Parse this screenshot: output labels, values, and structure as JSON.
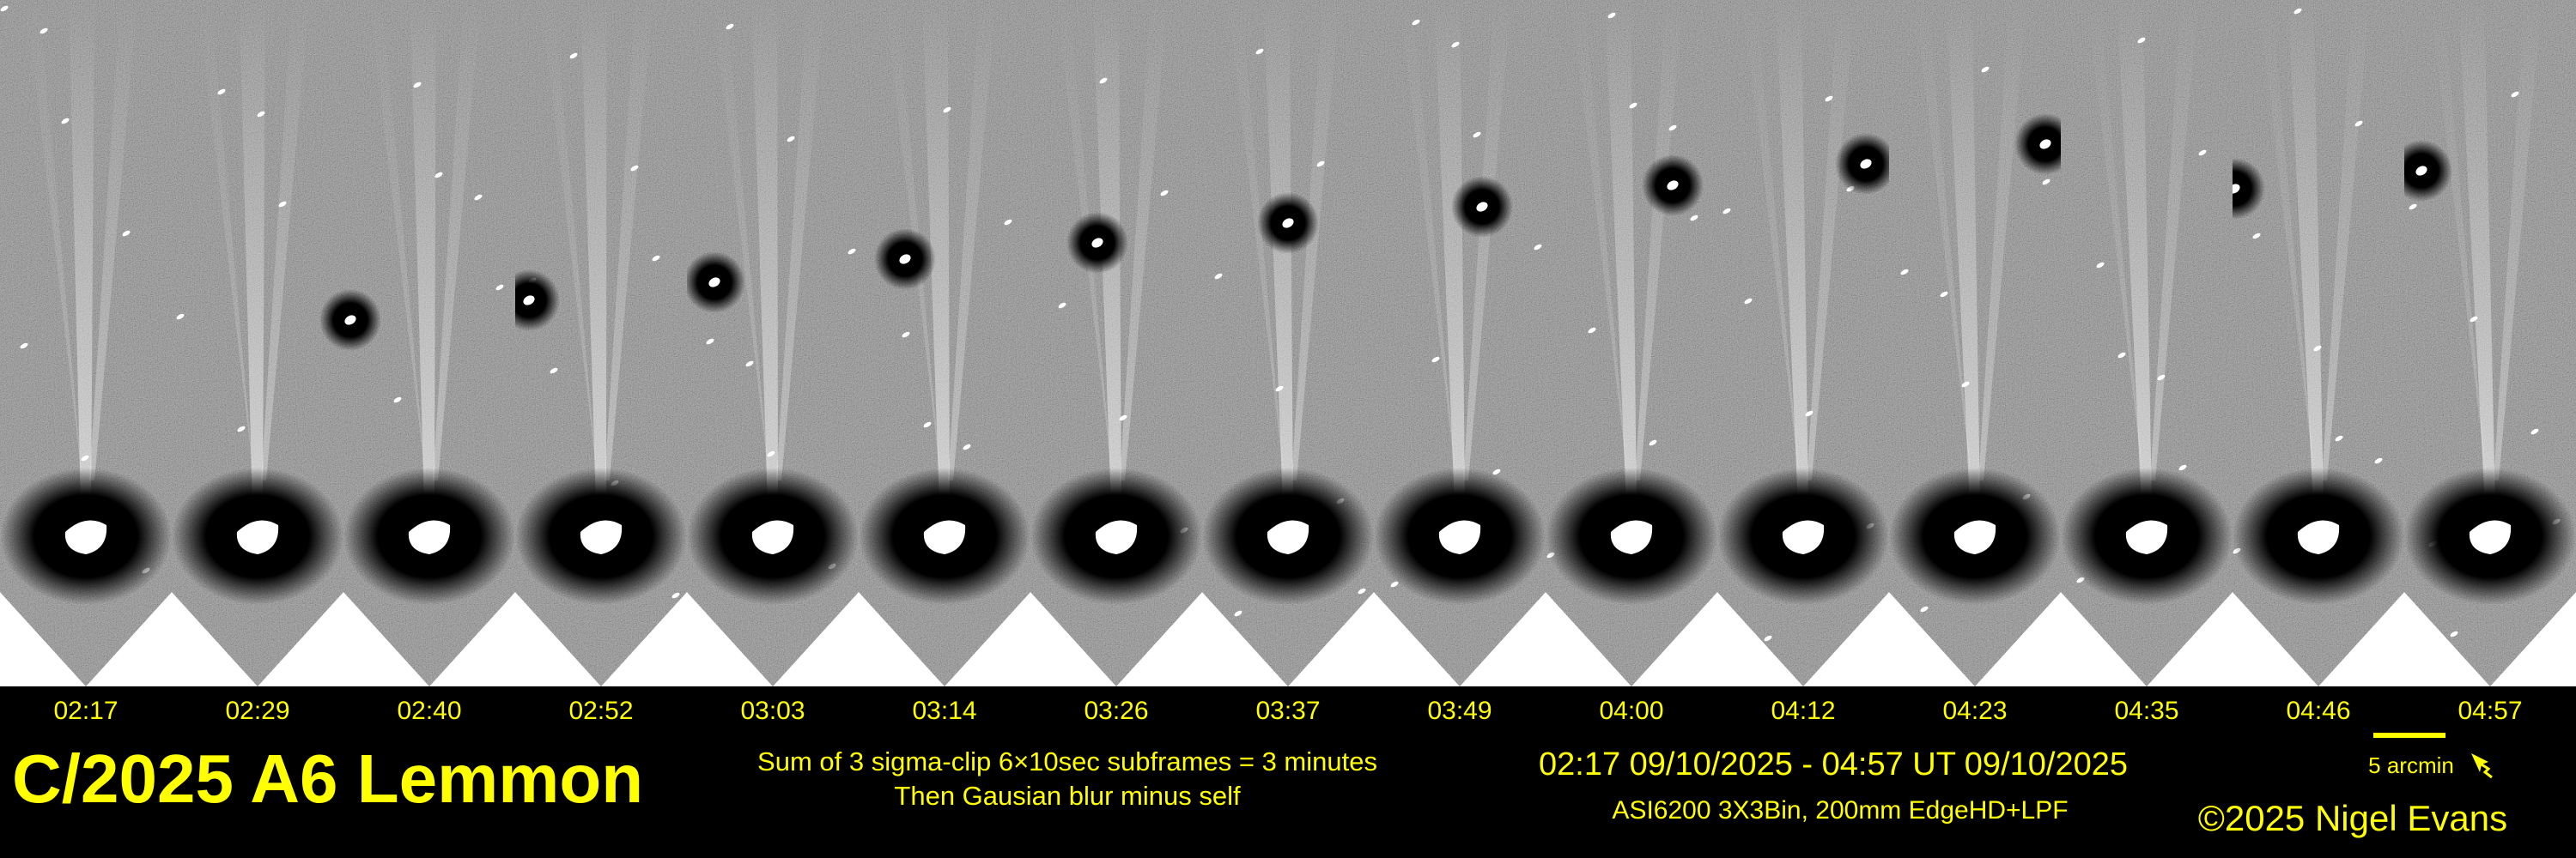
{
  "title": "C/2025 A6 Lemmon",
  "frame_times": [
    "02:17",
    "02:29",
    "02:40",
    "02:52",
    "03:03",
    "03:14",
    "03:26",
    "03:37",
    "03:49",
    "04:00",
    "04:12",
    "04:23",
    "04:35",
    "04:46",
    "04:57"
  ],
  "processing": {
    "line1": "Sum of 3 sigma-clip 6×10sec subframes = 3 minutes",
    "line2": "Then Gausian blur minus self"
  },
  "date_range": "02:17 09/10/2025 - 04:57 UT 09/10/2025",
  "equipment": "ASI6200 3X3Bin, 200mm EdgeHD+LPF",
  "copyright": "©2025 Nigel Evans",
  "scale": {
    "label": "5 arcmin"
  },
  "orientation_icon": "direction-arrow-icon",
  "colors": {
    "text": "#ffff00",
    "band": "#000000",
    "sky": "#808080"
  }
}
